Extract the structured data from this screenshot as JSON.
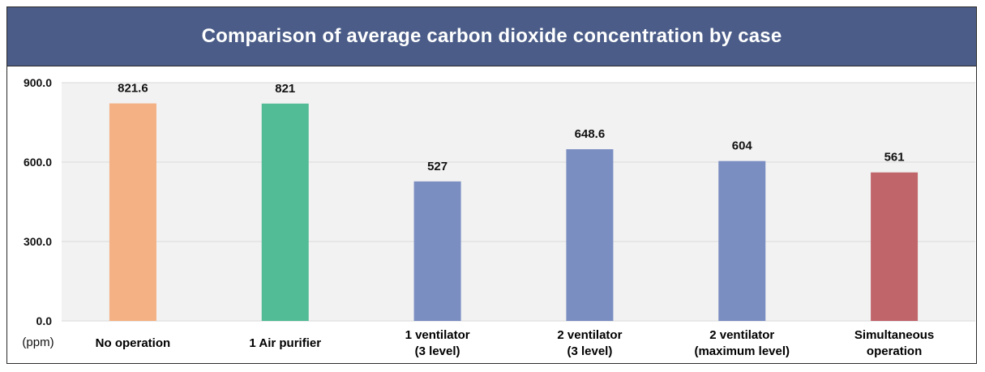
{
  "chart_data": {
    "type": "bar",
    "title": "Comparison of average carbon dioxide concentration by case",
    "ylabel": "(ppm)",
    "ylim": [
      0,
      900
    ],
    "yticks": [
      "0.0",
      "300.0",
      "600.0",
      "900.0"
    ],
    "grid": true,
    "categories": [
      [
        "No operation"
      ],
      [
        "1 Air purifier"
      ],
      [
        "1 ventilator",
        "(3 level)"
      ],
      [
        "2 ventilator",
        "(3 level)"
      ],
      [
        "2 ventilator",
        "(maximum level)"
      ],
      [
        "Simultaneous",
        "operation"
      ]
    ],
    "values": [
      821.6,
      821,
      527,
      648.6,
      604,
      561
    ],
    "value_labels": [
      "821.6",
      "821",
      "527",
      "648.6",
      "604",
      "561"
    ],
    "colors": [
      "#f4b183",
      "#52bc96",
      "#7b8ec2",
      "#7b8ec2",
      "#7b8ec2",
      "#c0666b"
    ]
  }
}
